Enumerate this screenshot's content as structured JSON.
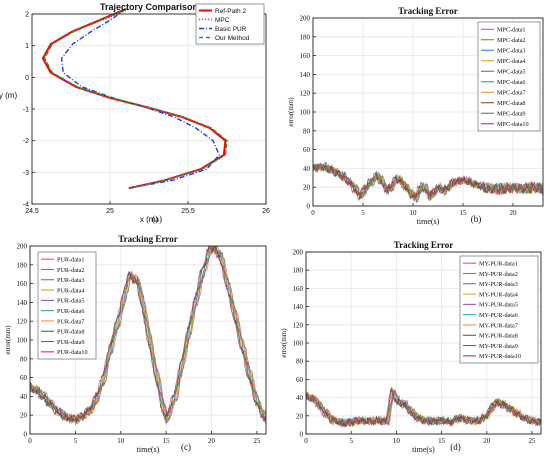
{
  "figure": {
    "title": ""
  },
  "colors": {
    "axis": "#222222",
    "grid": "#e6e6e6",
    "ref": "#ff0000",
    "mpc": "#d21ed2",
    "pur": "#1f3bdc",
    "ours": "#1fa31f"
  },
  "chart_data": [
    {
      "type": "line",
      "panel": "(a)",
      "title": "Trajectory Comparison",
      "xlabel": "x (m)",
      "ylabel": "y (m)",
      "xlim": [
        24.5,
        26
      ],
      "ylim": [
        -4,
        2
      ],
      "xticks": [
        "24.5",
        "25",
        "25.5",
        "26"
      ],
      "yticks": [
        "-4",
        "-3",
        "-2",
        "-1",
        "0",
        "1",
        "2"
      ],
      "grid": true,
      "legend_position": "top-right",
      "series": [
        {
          "name": "Ref-Path 2",
          "color_key": "ref",
          "style": "solid",
          "x": [
            25.1,
            24.93,
            24.76,
            24.62,
            24.57,
            24.62,
            24.78,
            25.0,
            25.24,
            25.46,
            25.64,
            25.74,
            25.73,
            25.58,
            25.35,
            25.12
          ],
          "y": [
            2.15,
            1.8,
            1.45,
            1.05,
            0.6,
            0.15,
            -0.3,
            -0.65,
            -0.95,
            -1.25,
            -1.6,
            -2.0,
            -2.45,
            -2.9,
            -3.25,
            -3.5
          ]
        },
        {
          "name": "MPC",
          "color_key": "mpc",
          "style": "dotted",
          "x": [
            25.12,
            24.95,
            24.77,
            24.63,
            24.58,
            24.63,
            24.79,
            25.01,
            25.25,
            25.47,
            25.65,
            25.75,
            25.74,
            25.59,
            25.36,
            25.13
          ],
          "y": [
            2.15,
            1.8,
            1.45,
            1.05,
            0.6,
            0.15,
            -0.3,
            -0.65,
            -0.95,
            -1.25,
            -1.6,
            -2.0,
            -2.45,
            -2.9,
            -3.25,
            -3.5
          ]
        },
        {
          "name": "Basic PUR",
          "color_key": "pur",
          "style": "dashdot",
          "x": [
            25.1,
            25.0,
            24.88,
            24.76,
            24.69,
            24.7,
            24.82,
            25.02,
            25.23,
            25.41,
            25.55,
            25.66,
            25.7,
            25.62,
            25.4,
            25.12
          ],
          "y": [
            2.15,
            1.8,
            1.45,
            1.05,
            0.6,
            0.15,
            -0.3,
            -0.65,
            -0.95,
            -1.25,
            -1.6,
            -2.0,
            -2.45,
            -2.9,
            -3.25,
            -3.5
          ]
        },
        {
          "name": "Our Method",
          "color_key": "ours",
          "style": "dashed",
          "x": [
            25.11,
            24.94,
            24.77,
            24.63,
            24.58,
            24.63,
            24.79,
            25.01,
            25.25,
            25.47,
            25.65,
            25.75,
            25.74,
            25.59,
            25.36,
            25.13
          ],
          "y": [
            2.15,
            1.8,
            1.45,
            1.05,
            0.6,
            0.15,
            -0.3,
            -0.65,
            -0.95,
            -1.25,
            -1.6,
            -2.0,
            -2.45,
            -2.9,
            -3.25,
            -3.5
          ]
        }
      ]
    },
    {
      "type": "line",
      "panel": "(b)",
      "title": "Tracking Error",
      "xlabel": "time(s)",
      "ylabel": "error(mm)",
      "xlim": [
        0,
        23
      ],
      "ylim": [
        0,
        200
      ],
      "xticks": [
        "0",
        "5",
        "10",
        "15",
        "20"
      ],
      "yticks": [
        "0",
        "20",
        "40",
        "60",
        "80",
        "100",
        "120",
        "140",
        "160",
        "180",
        "200"
      ],
      "grid": true,
      "legend_position": "top-right",
      "series_names": [
        "MPC-data1",
        "MPC-data2",
        "MPC-data3",
        "MPC-data4",
        "MPC-data5",
        "MPC-data6",
        "MPC-data7",
        "MPC-data8",
        "MPC-data9",
        "MPC-data10"
      ],
      "envelope": {
        "x": [
          0,
          1,
          2,
          3,
          4,
          4.8,
          5.5,
          6.5,
          7.5,
          8.5,
          9.5,
          10.2,
          11,
          11.8,
          12.5,
          13.2,
          14,
          15,
          16,
          17,
          18,
          19,
          20,
          21,
          22,
          23
        ],
        "y": [
          40,
          42,
          38,
          32,
          22,
          10,
          22,
          33,
          16,
          30,
          18,
          8,
          22,
          10,
          20,
          16,
          25,
          28,
          24,
          20,
          18,
          18,
          20,
          18,
          20,
          18
        ]
      }
    },
    {
      "type": "line",
      "panel": "(c)",
      "title": "Tracking Error",
      "xlabel": "time(s)",
      "ylabel": "error(mm)",
      "xlim": [
        0,
        26
      ],
      "ylim": [
        0,
        200
      ],
      "xticks": [
        "0",
        "5",
        "10",
        "15",
        "20",
        "25"
      ],
      "yticks": [
        "0",
        "20",
        "40",
        "60",
        "80",
        "100",
        "120",
        "140",
        "160",
        "180",
        "200"
      ],
      "grid": true,
      "legend_position": "top-left",
      "series_names": [
        "PUR-data1",
        "PUR-data2",
        "PUR-data3",
        "PUR-data4",
        "PUR-data5",
        "PUR-data6",
        "PUR-data7",
        "PUR-data8",
        "PUR-data9",
        "PUR-data10"
      ],
      "envelope": {
        "x": [
          0,
          1,
          2,
          3,
          4,
          5,
          6,
          7,
          8,
          9,
          10,
          11,
          12,
          13,
          14,
          15,
          16,
          17,
          18,
          19,
          20,
          21,
          22,
          23,
          24,
          25,
          26
        ],
        "y": [
          50,
          45,
          35,
          25,
          18,
          15,
          20,
          30,
          55,
          95,
          130,
          170,
          160,
          110,
          60,
          15,
          40,
          85,
          130,
          170,
          200,
          190,
          150,
          110,
          70,
          35,
          15
        ]
      }
    },
    {
      "type": "line",
      "panel": "(d)",
      "title": "Tracking Error",
      "xlabel": "time(s)",
      "ylabel": "error(mm)",
      "xlim": [
        0,
        26
      ],
      "ylim": [
        0,
        200
      ],
      "xticks": [
        "0",
        "5",
        "10",
        "15",
        "20",
        "25"
      ],
      "yticks": [
        "0",
        "20",
        "40",
        "60",
        "80",
        "100",
        "120",
        "140",
        "160",
        "180",
        "200"
      ],
      "grid": true,
      "legend_position": "top-right",
      "series_names": [
        "MY-PUR-data1",
        "MY-PUR-data2",
        "MY-PUR-data3",
        "MY-PUR-data4",
        "MY-PUR-data5",
        "MY-PUR-data6",
        "MY-PUR-data7",
        "MY-PUR-data8",
        "MY-PUR-data9",
        "MY-PUR-data10"
      ],
      "envelope": {
        "x": [
          0,
          1,
          2,
          3,
          4,
          5,
          6,
          7,
          8,
          9,
          9.6,
          10.2,
          11,
          12,
          13,
          14,
          15,
          16,
          17,
          18,
          19,
          20,
          21,
          22,
          23,
          24,
          25,
          26
        ],
        "y": [
          42,
          38,
          25,
          15,
          12,
          13,
          15,
          14,
          15,
          13,
          48,
          35,
          32,
          20,
          15,
          14,
          15,
          13,
          18,
          15,
          14,
          20,
          35,
          32,
          25,
          18,
          15,
          13
        ]
      }
    }
  ]
}
